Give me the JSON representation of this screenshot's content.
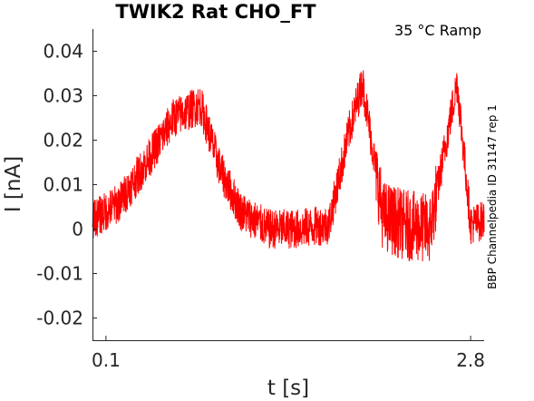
{
  "chart_data": {
    "type": "line",
    "title": "TWIK2  Rat  CHO_FT",
    "condition": "35 °C  Ramp",
    "xlabel": "t [s]",
    "ylabel": "I [nA]",
    "side_label": "BBP Channelpedia ID 31147 rep 1",
    "xlim": [
      0,
      2.9
    ],
    "ylim": [
      -0.025,
      0.045
    ],
    "x_ticks": [
      0.1,
      2.8
    ],
    "x_tick_labels": [
      "0.1",
      "2.8"
    ],
    "y_ticks": [
      -0.02,
      -0.01,
      0,
      0.01,
      0.02,
      0.03,
      0.04
    ],
    "y_tick_labels": [
      "-0.02",
      "-0.01",
      "0",
      "0.01",
      "0.02",
      "0.03",
      "0.04"
    ],
    "grid": false,
    "line_color": "#ff0000",
    "series": [
      {
        "x": [
          0.0,
          0.2,
          0.4,
          0.6,
          0.8,
          0.95,
          1.1,
          1.3,
          1.5,
          1.75,
          1.9,
          2.0,
          2.15,
          2.3,
          2.5,
          2.62,
          2.7,
          2.8,
          2.9
        ],
        "y": [
          0.002,
          0.006,
          0.015,
          0.025,
          0.028,
          0.013,
          0.004,
          0.0,
          0.0,
          0.001,
          0.022,
          0.033,
          0.003,
          0.001,
          0.0,
          0.02,
          0.033,
          0.001,
          0.002
        ]
      }
    ]
  }
}
